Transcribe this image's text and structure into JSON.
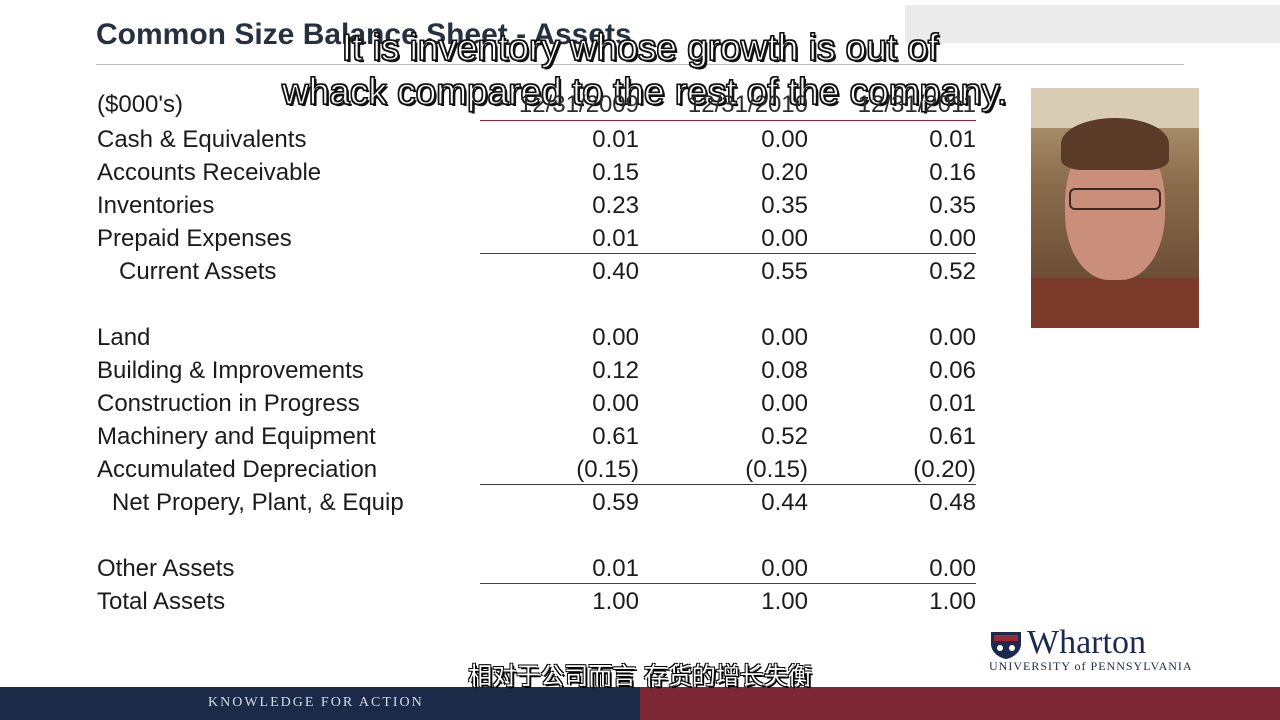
{
  "slide": {
    "title": "Common Size Balance Sheet - Assets",
    "unit_label": "($000's)",
    "years": [
      "12/31/2009",
      "12/31/2010",
      "12/31/2011"
    ]
  },
  "caption": {
    "line1": "It is inventory whose growth is out of",
    "line2": "whack compared to the rest of the company."
  },
  "rows": [
    {
      "label": "Cash & Equivalents",
      "values": [
        "0.01",
        "0.00",
        "0.01"
      ]
    },
    {
      "label": "Accounts Receivable",
      "values": [
        "0.15",
        "0.20",
        "0.16"
      ]
    },
    {
      "label": "Inventories",
      "values": [
        "0.23",
        "0.35",
        "0.35"
      ]
    },
    {
      "label": "Prepaid Expenses",
      "values": [
        "0.01",
        "0.00",
        "0.00"
      ]
    },
    {
      "label": "Current Assets",
      "values": [
        "0.40",
        "0.55",
        "0.52"
      ]
    },
    {
      "label": "Land",
      "values": [
        "0.00",
        "0.00",
        "0.00"
      ]
    },
    {
      "label": "Building & Improvements",
      "values": [
        "0.12",
        "0.08",
        "0.06"
      ]
    },
    {
      "label": "Construction in Progress",
      "values": [
        "0.00",
        "0.00",
        "0.01"
      ]
    },
    {
      "label": "Machinery and Equipment",
      "values": [
        "0.61",
        "0.52",
        "0.61"
      ]
    },
    {
      "label": "Accumulated Depreciation",
      "values": [
        "(0.15)",
        "(0.15)",
        "(0.20)"
      ]
    },
    {
      "label": "Net Propery, Plant, & Equip",
      "values": [
        "0.59",
        "0.44",
        "0.48"
      ]
    },
    {
      "label": "Other Assets",
      "values": [
        "0.01",
        "0.00",
        "0.00"
      ]
    },
    {
      "label": "Total Assets",
      "values": [
        "1.00",
        "1.00",
        "1.00"
      ]
    }
  ],
  "logo": {
    "wordmark": "Wharton",
    "university": "UNIVERSITY of PENNSYLVANIA"
  },
  "footer": {
    "tagline": "KNOWLEDGE FOR ACTION"
  },
  "subtitle_cn": "相对于公司而言 存货的增长失衡",
  "colors": {
    "footer_navy": "#1c2a4a",
    "footer_red": "#7d2635",
    "rule_red": "#7a2a38",
    "title": "#26303f"
  }
}
